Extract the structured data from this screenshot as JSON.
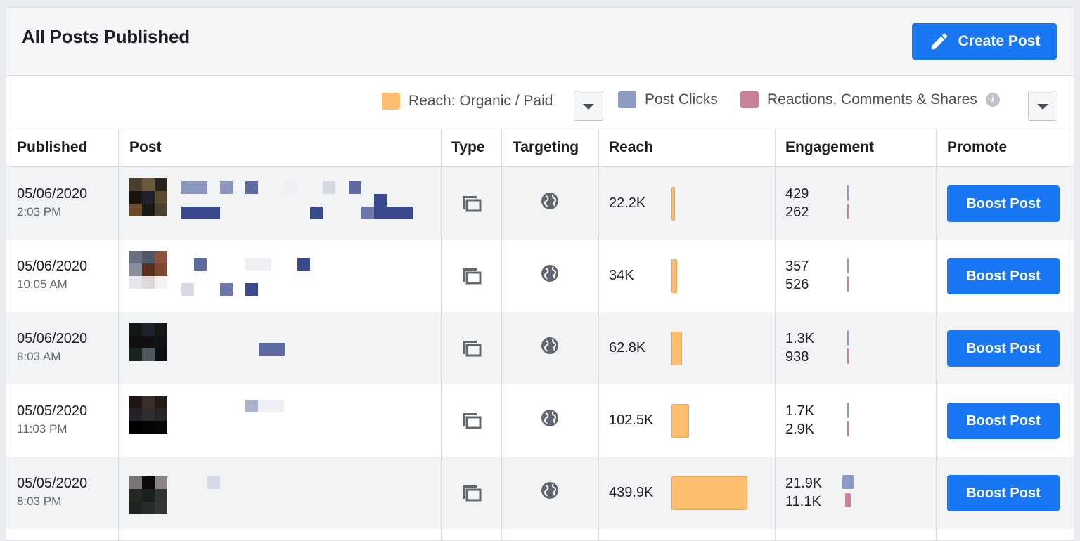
{
  "header": {
    "title": "All Posts Published",
    "create_label": "Create Post"
  },
  "legend": {
    "reach_label": "Reach: Organic / Paid",
    "clicks_label": "Post Clicks",
    "engagement_label": "Reactions, Comments & Shares",
    "colors": {
      "reach": "#ffbe6f",
      "clicks": "#8d9bc4",
      "engagement": "#c9809a"
    }
  },
  "columns": [
    "Published",
    "Post",
    "Type",
    "Targeting",
    "Reach",
    "Engagement",
    "Promote"
  ],
  "boost_label": "Boost Post",
  "rows": [
    {
      "date": "05/06/2020",
      "time": "2:03 PM",
      "reach": "22.2K",
      "reach_value": 22.2,
      "eng_clicks": "429",
      "eng_reactions": "262",
      "clicks_value": 429,
      "reactions_value": 262
    },
    {
      "date": "05/06/2020",
      "time": "10:05 AM",
      "reach": "34K",
      "reach_value": 34,
      "eng_clicks": "357",
      "eng_reactions": "526",
      "clicks_value": 357,
      "reactions_value": 526
    },
    {
      "date": "05/06/2020",
      "time": "8:03 AM",
      "reach": "62.8K",
      "reach_value": 62.8,
      "eng_clicks": "1.3K",
      "eng_reactions": "938",
      "clicks_value": 1300,
      "reactions_value": 938
    },
    {
      "date": "05/05/2020",
      "time": "11:03 PM",
      "reach": "102.5K",
      "reach_value": 102.5,
      "eng_clicks": "1.7K",
      "eng_reactions": "2.9K",
      "clicks_value": 1700,
      "reactions_value": 2900
    },
    {
      "date": "05/05/2020",
      "time": "8:03 PM",
      "reach": "439.9K",
      "reach_value": 439.9,
      "eng_clicks": "21.9K",
      "eng_reactions": "11.1K",
      "clicks_value": 21900,
      "reactions_value": 11100
    }
  ]
}
